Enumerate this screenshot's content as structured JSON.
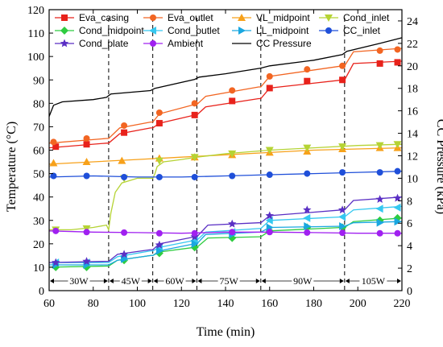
{
  "chart_data": {
    "type": "line",
    "title": "",
    "xlabel": "Time (min)",
    "ylabel": "Temperature (°C)",
    "y2label": "CC Pressure (kPa)",
    "xlim": [
      60,
      220
    ],
    "ylim": [
      0,
      120
    ],
    "y2lim": [
      0,
      25
    ],
    "x_ticks": [
      60,
      80,
      100,
      120,
      140,
      160,
      180,
      200,
      220
    ],
    "y_ticks": [
      0,
      10,
      20,
      30,
      40,
      50,
      60,
      70,
      80,
      90,
      100,
      110,
      120
    ],
    "y2_ticks": [
      0,
      2,
      4,
      6,
      8,
      10,
      12,
      14,
      16,
      18,
      20,
      22,
      24
    ],
    "grid": false,
    "legend_placement": "top",
    "phase_boundaries": [
      87,
      107,
      127,
      156,
      194
    ],
    "phases": [
      {
        "label": "30W",
        "x_start": 60,
        "x_end": 87
      },
      {
        "label": "45W",
        "x_start": 87,
        "x_end": 107
      },
      {
        "label": "60W",
        "x_start": 107,
        "x_end": 127
      },
      {
        "label": "75W",
        "x_start": 127,
        "x_end": 156
      },
      {
        "label": "90W",
        "x_start": 156,
        "x_end": 194
      },
      {
        "label": "105W",
        "x_start": 194,
        "x_end": 220
      }
    ],
    "series": [
      {
        "name": "Eva_casing",
        "color": "#e8221b",
        "marker": "square",
        "axis": "left",
        "x": [
          60,
          86,
          87,
          92,
          106,
          107,
          110,
          126,
          127,
          131,
          155,
          156,
          160,
          193,
          194,
          198,
          220
        ],
        "y": [
          61,
          63,
          63,
          67,
          69.5,
          69.5,
          71.5,
          75,
          75,
          78.5,
          82,
          82,
          86.5,
          90,
          90,
          97,
          98
        ],
        "markers": [
          [
            63,
            61.5
          ],
          [
            77,
            62.5
          ],
          [
            94,
            67.5
          ],
          [
            110,
            71.5
          ],
          [
            126,
            75
          ],
          [
            143,
            81
          ],
          [
            160,
            86.5
          ],
          [
            177,
            89.5
          ],
          [
            193,
            90
          ],
          [
            210,
            97
          ],
          [
            218,
            97.5
          ]
        ]
      },
      {
        "name": "Eva_outlet",
        "color": "#f26522",
        "marker": "circle",
        "axis": "left",
        "x": [
          60,
          86,
          87,
          92,
          106,
          107,
          110,
          126,
          127,
          131,
          155,
          156,
          160,
          193,
          194,
          198,
          220
        ],
        "y": [
          63,
          65,
          65,
          69.5,
          72,
          72,
          75.5,
          79.5,
          79.5,
          83,
          87,
          87,
          91.5,
          96,
          96,
          102,
          103.5
        ],
        "markers": [
          [
            62,
            63.5
          ],
          [
            77,
            65
          ],
          [
            94,
            70.5
          ],
          [
            110,
            76
          ],
          [
            126,
            80
          ],
          [
            143,
            85.5
          ],
          [
            160,
            91.5
          ],
          [
            177,
            94.5
          ],
          [
            193,
            96
          ],
          [
            210,
            102.5
          ],
          [
            218,
            103
          ]
        ]
      },
      {
        "name": "VL_midpoint",
        "color": "#f7a11a",
        "marker": "triangle",
        "axis": "left",
        "x": [
          60,
          80,
          100,
          120,
          140,
          160,
          180,
          200,
          220
        ],
        "y": [
          54,
          55,
          56,
          57,
          58,
          59,
          60,
          60.5,
          61
        ],
        "markers": [
          [
            62,
            54.5
          ],
          [
            77,
            55
          ],
          [
            93,
            55.5
          ],
          [
            110,
            56.5
          ],
          [
            126,
            57
          ],
          [
            143,
            58
          ],
          [
            160,
            59
          ],
          [
            177,
            59.5
          ],
          [
            193,
            60.5
          ],
          [
            210,
            61
          ],
          [
            218,
            61
          ]
        ]
      },
      {
        "name": "Cond_inlet",
        "color": "#b5d334",
        "marker": "triangle-down",
        "axis": "left",
        "x": [
          60,
          70,
          80,
          86,
          87,
          88,
          90,
          93,
          100,
          107,
          108,
          109,
          112,
          116,
          120,
          127,
          140,
          160,
          180,
          200,
          220
        ],
        "y": [
          26,
          26,
          27,
          28,
          26,
          33,
          42,
          46,
          48,
          48,
          50,
          53,
          55,
          55.5,
          56,
          57,
          58.5,
          60,
          61,
          62,
          62.5
        ],
        "markers": [
          [
            63,
            26
          ],
          [
            77,
            26.5
          ],
          [
            94,
            48
          ],
          [
            110,
            55.5
          ],
          [
            126,
            57
          ],
          [
            143,
            58.5
          ],
          [
            160,
            60
          ],
          [
            177,
            61
          ],
          [
            193,
            61.5
          ],
          [
            210,
            62
          ],
          [
            218,
            62.5
          ]
        ]
      },
      {
        "name": "Cond_midpoint",
        "color": "#2ecc40",
        "marker": "diamond",
        "axis": "left",
        "x": [
          60,
          86,
          87,
          91,
          106,
          107,
          110,
          126,
          127,
          132,
          155,
          156,
          160,
          193,
          194,
          198,
          220
        ],
        "y": [
          10,
          10.5,
          10.5,
          13,
          15,
          15,
          16.5,
          18.5,
          18.5,
          22.5,
          23,
          23,
          25.5,
          27,
          27,
          29.5,
          31
        ],
        "markers": [
          [
            63,
            10
          ],
          [
            77,
            10
          ],
          [
            94,
            13
          ],
          [
            110,
            16
          ],
          [
            126,
            18.5
          ],
          [
            143,
            22.5
          ],
          [
            160,
            25.5
          ],
          [
            177,
            27
          ],
          [
            193,
            27
          ],
          [
            210,
            30
          ],
          [
            218,
            31
          ]
        ]
      },
      {
        "name": "Cond_outlet",
        "color": "#35c8f0",
        "marker": "triangle-left",
        "axis": "left",
        "x": [
          60,
          86,
          87,
          91,
          106,
          107,
          110,
          126,
          127,
          131,
          155,
          156,
          160,
          193,
          194,
          198,
          220
        ],
        "y": [
          12,
          12,
          12,
          14.5,
          17,
          17,
          18.5,
          21.5,
          21.5,
          25,
          26.5,
          26.5,
          30,
          31.5,
          31.5,
          34.5,
          36
        ],
        "markers": [
          [
            63,
            12
          ],
          [
            77,
            12
          ],
          [
            94,
            14.5
          ],
          [
            110,
            18.5
          ],
          [
            126,
            21.5
          ],
          [
            143,
            25
          ],
          [
            160,
            30
          ],
          [
            177,
            31
          ],
          [
            193,
            31.5
          ],
          [
            210,
            35
          ],
          [
            218,
            35.5
          ]
        ]
      },
      {
        "name": "LL_midpoint",
        "color": "#1aa7e0",
        "marker": "triangle-right",
        "axis": "left",
        "x": [
          60,
          86,
          87,
          91,
          106,
          107,
          110,
          126,
          127,
          131,
          155,
          156,
          160,
          193,
          194,
          198,
          220
        ],
        "y": [
          11,
          11,
          11,
          13,
          15,
          15,
          17,
          20,
          20,
          24,
          25,
          25,
          27,
          27.5,
          27.5,
          29,
          29.5
        ],
        "markers": [
          [
            63,
            11
          ],
          [
            77,
            11
          ],
          [
            94,
            13.5
          ],
          [
            110,
            17
          ],
          [
            126,
            20
          ],
          [
            143,
            24
          ],
          [
            160,
            27
          ],
          [
            177,
            27.5
          ],
          [
            193,
            27.5
          ],
          [
            210,
            29
          ],
          [
            218,
            29.5
          ]
        ]
      },
      {
        "name": "CC_inlet",
        "color": "#1f4fd9",
        "marker": "circle",
        "axis": "left",
        "x": [
          60,
          80,
          100,
          120,
          140,
          160,
          180,
          200,
          220
        ],
        "y": [
          48.5,
          49,
          48.5,
          48.5,
          49,
          49.5,
          50,
          50.5,
          51
        ],
        "markers": [
          [
            62,
            49
          ],
          [
            77,
            49
          ],
          [
            94,
            48.5
          ],
          [
            110,
            48.5
          ],
          [
            126,
            48.5
          ],
          [
            143,
            49
          ],
          [
            160,
            49.5
          ],
          [
            177,
            50
          ],
          [
            193,
            50.5
          ],
          [
            210,
            50.5
          ],
          [
            218,
            51
          ]
        ]
      },
      {
        "name": "Cond_plate",
        "color": "#5a2fc4",
        "marker": "star",
        "axis": "left",
        "x": [
          60,
          86,
          87,
          91,
          106,
          107,
          110,
          126,
          127,
          132,
          155,
          156,
          160,
          193,
          194,
          198,
          220
        ],
        "y": [
          12,
          12.5,
          12.5,
          15.5,
          17.5,
          17.5,
          20,
          23,
          23,
          28,
          29,
          29,
          32,
          34.5,
          34.5,
          38.5,
          40
        ],
        "markers": [
          [
            63,
            12
          ],
          [
            77,
            12.5
          ],
          [
            94,
            15.5
          ],
          [
            110,
            19.5
          ],
          [
            126,
            23
          ],
          [
            143,
            28.5
          ],
          [
            160,
            32
          ],
          [
            177,
            34.5
          ],
          [
            193,
            34.5
          ],
          [
            210,
            39
          ],
          [
            218,
            39.5
          ]
        ]
      },
      {
        "name": "Ambient",
        "color": "#a020f0",
        "marker": "circle",
        "axis": "left",
        "x": [
          60,
          80,
          100,
          120,
          140,
          160,
          180,
          200,
          220
        ],
        "y": [
          25.5,
          25,
          24.8,
          24.5,
          25,
          25,
          24.8,
          24.5,
          24.5
        ],
        "markers": [
          [
            63,
            25.5
          ],
          [
            77,
            25
          ],
          [
            94,
            24.8
          ],
          [
            110,
            24.5
          ],
          [
            126,
            24.5
          ],
          [
            143,
            25
          ],
          [
            160,
            25
          ],
          [
            177,
            24.8
          ],
          [
            193,
            24.7
          ],
          [
            210,
            24.5
          ],
          [
            218,
            24.5
          ]
        ]
      },
      {
        "name": "CC Pressure",
        "color": "#000000",
        "marker": "none",
        "axis": "right",
        "x": [
          60,
          62,
          66,
          80,
          86,
          88,
          106,
          108,
          126,
          128,
          140,
          156,
          160,
          180,
          193,
          195,
          210,
          220
        ],
        "y": [
          15.5,
          16.5,
          16.8,
          17,
          17.2,
          17.5,
          17.8,
          18,
          18.8,
          19,
          19.3,
          19.8,
          20,
          20.5,
          21,
          21.3,
          22,
          22.5
        ],
        "markers": []
      }
    ]
  }
}
